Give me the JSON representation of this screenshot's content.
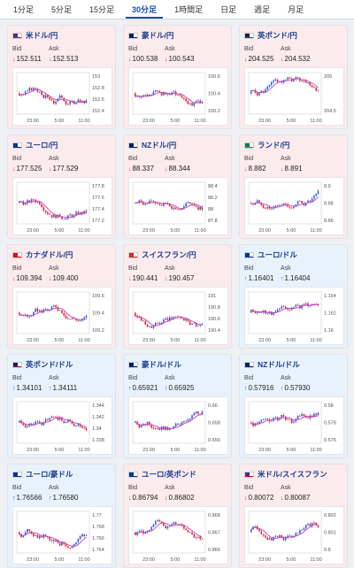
{
  "tabs": [
    {
      "label": "1分足",
      "active": false
    },
    {
      "label": "5分足",
      "active": false
    },
    {
      "label": "15分足",
      "active": false
    },
    {
      "label": "30分足",
      "active": true
    },
    {
      "label": "1時間足",
      "active": false
    },
    {
      "label": "日足",
      "active": false
    },
    {
      "label": "週足",
      "active": false
    },
    {
      "label": "月足",
      "active": false
    }
  ],
  "labels": {
    "bid": "Bid",
    "ask": "Ask"
  },
  "colors": {
    "up_candle": "#2a63d8",
    "down_candle": "#e0262f",
    "ma_line": "#c040c0",
    "title": "#1a3d8f",
    "up_bg": "#e8f2fc",
    "down_bg": "#fcebec"
  },
  "x_ticks": [
    "23:00",
    "5:00",
    "11:00"
  ],
  "cards": [
    {
      "pair": "米ドル/円",
      "flag": "us",
      "dir": "down",
      "bid": "152.511",
      "ask": "152.513",
      "y_ticks": [
        "153",
        "152.8",
        "152.6",
        "152.4"
      ]
    },
    {
      "pair": "豪ドル/円",
      "flag": "au",
      "dir": "down",
      "bid": "100.538",
      "ask": "100.543",
      "y_ticks": [
        "100.6",
        "100.4",
        "100.2"
      ]
    },
    {
      "pair": "英ポンド/円",
      "flag": "gb",
      "dir": "down",
      "bid": "204.525",
      "ask": "204.532",
      "y_ticks": [
        "205",
        "204.5"
      ]
    },
    {
      "pair": "ユーロ/円",
      "flag": "eu",
      "dir": "down",
      "bid": "177.525",
      "ask": "177.529",
      "y_ticks": [
        "177.8",
        "177.6",
        "177.4",
        "177.2"
      ]
    },
    {
      "pair": "NZドル/円",
      "flag": "nz",
      "dir": "down",
      "bid": "88.337",
      "ask": "88.344",
      "y_ticks": [
        "88.4",
        "88.2",
        "88",
        "87.8"
      ]
    },
    {
      "pair": "ランド/円",
      "flag": "za",
      "dir": "down",
      "bid": "8.882",
      "ask": "8.891",
      "y_ticks": [
        "8.9",
        "8.88",
        "8.86"
      ]
    },
    {
      "pair": "カナダドル/円",
      "flag": "ca",
      "dir": "down",
      "bid": "109.394",
      "ask": "109.400",
      "y_ticks": [
        "109.6",
        "109.4",
        "109.2"
      ]
    },
    {
      "pair": "スイスフラン/円",
      "flag": "ch",
      "dir": "down",
      "bid": "190.441",
      "ask": "190.457",
      "y_ticks": [
        "191",
        "190.8",
        "190.6",
        "190.4"
      ]
    },
    {
      "pair": "ユーロ/ドル",
      "flag": "eu",
      "dir": "up",
      "bid": "1.16401",
      "ask": "1.16404",
      "y_ticks": [
        "1.164",
        "1.162",
        "1.16"
      ]
    },
    {
      "pair": "英ポンド/ドル",
      "flag": "gb",
      "dir": "up",
      "bid": "1.34101",
      "ask": "1.34111",
      "y_ticks": [
        "1.344",
        "1.342",
        "1.34",
        "1.338"
      ]
    },
    {
      "pair": "豪ドル/ドル",
      "flag": "au",
      "dir": "up",
      "bid": "0.65921",
      "ask": "0.65925",
      "y_ticks": [
        "0.66",
        "0.658",
        "0.656"
      ]
    },
    {
      "pair": "NZドル/ドル",
      "flag": "nz",
      "dir": "up",
      "bid": "0.57916",
      "ask": "0.57930",
      "y_ticks": [
        "0.58",
        "0.578",
        "0.576"
      ]
    },
    {
      "pair": "ユーロ/豪ドル",
      "flag": "eu",
      "dir": "up",
      "bid": "1.76566",
      "ask": "1.76580",
      "y_ticks": [
        "1.77",
        "1.768",
        "1.766",
        "1.764"
      ]
    },
    {
      "pair": "ユーロ/英ポンド",
      "flag": "eu",
      "dir": "down",
      "bid": "0.86794",
      "ask": "0.86802",
      "y_ticks": [
        "0.868",
        "0.867",
        "0.866"
      ]
    },
    {
      "pair": "米ドル/スイスフラン",
      "flag": "us",
      "dir": "down",
      "bid": "0.80072",
      "ask": "0.80087",
      "y_ticks": [
        "0.802",
        "0.801",
        "0.8"
      ]
    }
  ]
}
